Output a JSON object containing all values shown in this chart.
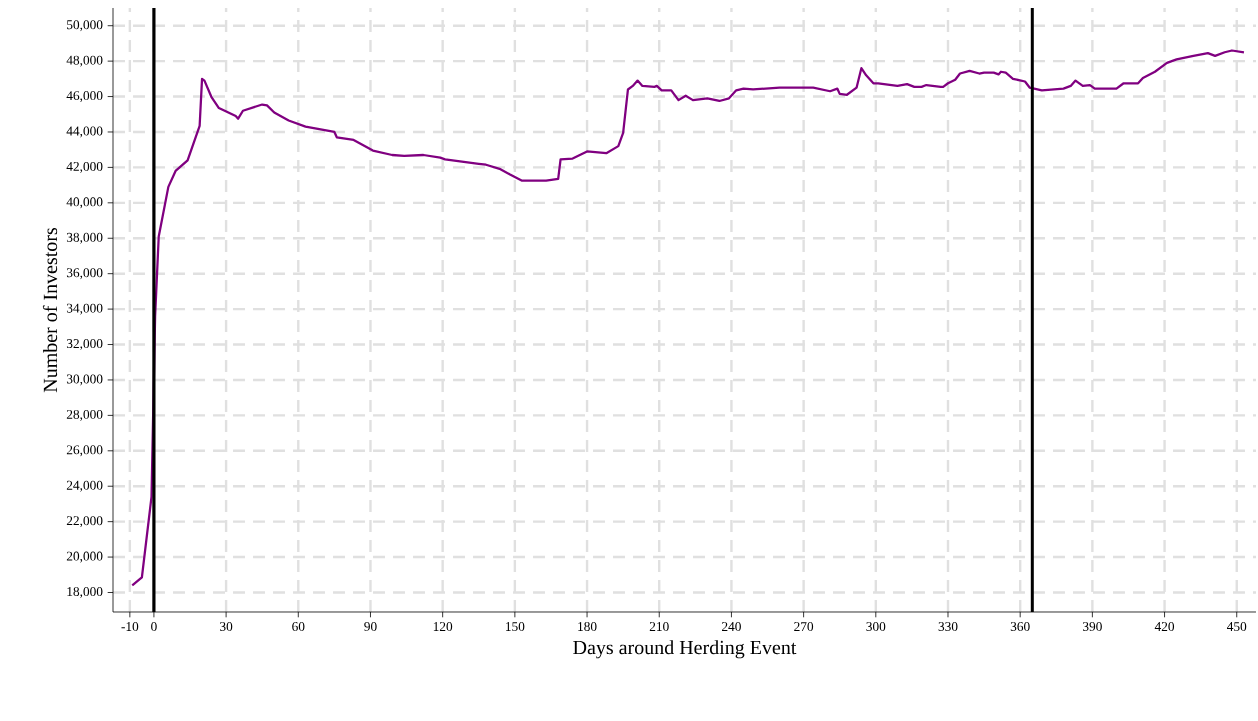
{
  "chart_data": {
    "type": "line",
    "xlabel": "Days around Herding Event",
    "ylabel": "Number of Investors",
    "xlim": [
      -17,
      458
    ],
    "ylim": [
      16900,
      51000
    ],
    "xticks": [
      -10,
      0,
      30,
      60,
      90,
      120,
      150,
      180,
      210,
      240,
      270,
      300,
      330,
      360,
      390,
      420,
      450
    ],
    "yticks": [
      {
        "value": 18000,
        "label": "18,000"
      },
      {
        "value": 20000,
        "label": "20,000"
      },
      {
        "value": 22000,
        "label": "22,000"
      },
      {
        "value": 24000,
        "label": "24,000"
      },
      {
        "value": 26000,
        "label": "26,000"
      },
      {
        "value": 28000,
        "label": "28,000"
      },
      {
        "value": 30000,
        "label": "30,000"
      },
      {
        "value": 32000,
        "label": "32,000"
      },
      {
        "value": 34000,
        "label": "34,000"
      },
      {
        "value": 36000,
        "label": "36,000"
      },
      {
        "value": 38000,
        "label": "38,000"
      },
      {
        "value": 40000,
        "label": "40,000"
      },
      {
        "value": 42000,
        "label": "42,000"
      },
      {
        "value": 44000,
        "label": "44,000"
      },
      {
        "value": 46000,
        "label": "46,000"
      },
      {
        "value": 48000,
        "label": "48,000"
      },
      {
        "value": 50000,
        "label": "50,000"
      }
    ],
    "grid": true,
    "legend": false,
    "marker": "none",
    "line_style": "solid",
    "ref_lines": [
      {
        "axis": "x",
        "value": 0,
        "color": "#000000"
      },
      {
        "axis": "x",
        "value": 365,
        "color": "#000000"
      }
    ],
    "series": [
      {
        "color": "#800080",
        "x": [
          -9,
          -5,
          -1,
          0.5,
          2,
          6,
          9,
          14,
          19,
          20,
          21,
          24,
          27,
          34,
          35,
          37,
          45,
          47,
          50,
          56,
          63,
          75,
          76,
          83,
          91,
          99,
          104,
          112,
          119,
          121,
          135,
          138,
          144,
          148,
          153,
          163,
          168,
          169,
          174,
          180,
          188,
          193,
          195,
          197,
          199,
          201,
          203,
          208,
          209,
          211,
          215,
          218,
          221,
          224,
          230,
          235,
          239,
          242,
          245,
          249,
          260,
          274,
          281,
          284,
          285,
          288,
          292,
          294,
          296,
          299,
          301,
          309,
          313,
          316,
          319,
          321,
          327,
          328,
          330,
          333,
          335,
          339,
          343,
          345,
          349,
          351,
          352,
          354,
          357,
          362,
          364,
          369,
          378,
          381,
          383,
          386,
          389,
          391,
          400,
          403,
          409,
          411,
          416,
          421,
          425,
          432,
          438,
          441,
          445,
          448,
          453
        ],
        "values": [
          18400,
          18850,
          23400,
          33600,
          38100,
          40900,
          41800,
          42400,
          44350,
          47000,
          46900,
          45950,
          45350,
          44900,
          44750,
          45200,
          45550,
          45500,
          45100,
          44650,
          44300,
          44000,
          43700,
          43550,
          42950,
          42700,
          42650,
          42700,
          42550,
          42450,
          42200,
          42150,
          41900,
          41600,
          41250,
          41250,
          41350,
          42450,
          42500,
          42900,
          42800,
          43200,
          43950,
          46400,
          46600,
          46900,
          46600,
          46550,
          46600,
          46350,
          46350,
          45800,
          46050,
          45800,
          45900,
          45750,
          45900,
          46350,
          46450,
          46400,
          46500,
          46500,
          46300,
          46450,
          46150,
          46100,
          46500,
          47600,
          47200,
          46750,
          46750,
          46600,
          46700,
          46550,
          46550,
          46650,
          46550,
          46550,
          46750,
          46950,
          47300,
          47450,
          47300,
          47350,
          47350,
          47250,
          47400,
          47350,
          47000,
          46850,
          46500,
          46350,
          46450,
          46600,
          46900,
          46600,
          46650,
          46450,
          46450,
          46750,
          46750,
          47050,
          47400,
          47900,
          48100,
          48300,
          48450,
          48300,
          48500,
          48600,
          48500
        ]
      }
    ]
  }
}
